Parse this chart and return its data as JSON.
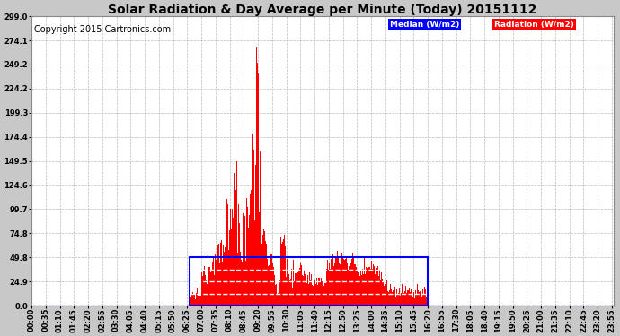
{
  "title": "Solar Radiation & Day Average per Minute (Today) 20151112",
  "copyright": "Copyright 2015 Cartronics.com",
  "background_color": "#c8c8c8",
  "plot_background": "#ffffff",
  "grid_color": "#bbbbbb",
  "yticks": [
    0.0,
    24.9,
    49.8,
    74.8,
    99.7,
    124.6,
    149.5,
    174.4,
    199.3,
    224.2,
    249.2,
    274.1,
    299.0
  ],
  "ymax": 299.0,
  "ymin": 0.0,
  "radiation_color": "#ff0000",
  "median_line_color": "#0000ff",
  "legend_median_bg": "#0000ff",
  "legend_radiation_bg": "#ff0000",
  "legend_median_text": "Median (W/m2)",
  "legend_radiation_text": "Radiation (W/m2)",
  "title_fontsize": 10,
  "copyright_fontsize": 7,
  "tick_fontsize": 6,
  "rect_xmin_h": 6.5,
  "rect_xmax_h": 16.33,
  "rect_ymin": 0,
  "rect_ymax": 49.8,
  "median_dashes": [
    12.5,
    24.9,
    37.35
  ],
  "xlim_min": 0,
  "xlim_max": 24
}
